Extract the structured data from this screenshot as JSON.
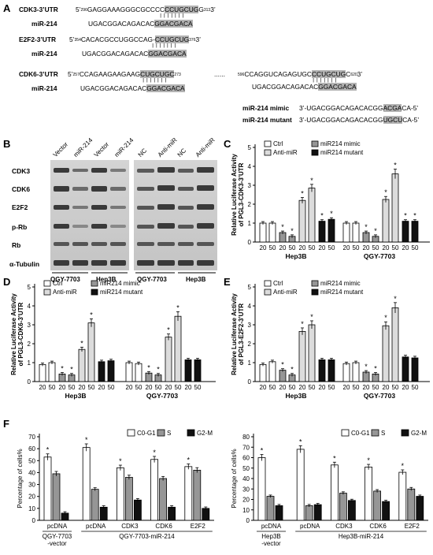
{
  "panels": {
    "A": "A",
    "B": "B",
    "C": "C",
    "D": "D",
    "E": "E",
    "F": "F"
  },
  "panel_a": {
    "cdk3": {
      "label": "CDK3-3’UTR",
      "prime5": "5’",
      "num_start": "296",
      "seq_pre": "GAGGAAAGGGCGCCCC",
      "seq_site": "CCUGCUG",
      "seq_post": "G",
      "num_end": "313",
      "prime3": "3’",
      "mir_label": "miR-214",
      "mir_pre": "UGACGGACAGACAC",
      "mir_site": "GGACGACA"
    },
    "e2f2": {
      "label": "E2F2-3’UTR",
      "prime5": "5’",
      "num_start": "354",
      "seq_pre": "CACACGCCUGGCCAG-",
      "seq_site": "CCUGCUG",
      "num_end": "376",
      "prime3": "3’",
      "mir_label": "miR-214",
      "mir_pre": "UGACGGACAGACAC",
      "mir_site": "GGACGACA"
    },
    "cdk6": {
      "label": "CDK6-3’UTR",
      "prime5": "5’",
      "num_start": "257",
      "seq_pre": "CCAGAAGAAGAAG",
      "seq_site": "CUGCUGC",
      "num_mid": "273",
      "dots": "......",
      "num_mid2": "596",
      "seq2_pre": "CCAGGUCAGAGUGC",
      "seq2_site": "CCUGCUG",
      "seq2_post": "C",
      "num_end": "620",
      "prime3": "3’",
      "mir_label": "miR-214",
      "mir_pre": "UGACGGACAGACAC",
      "mir_site": "GGACGACA",
      "mir2_pre": "UGACGGACAGACAC",
      "mir2_site": "GGACGACA"
    },
    "mimic": {
      "label": "miR-214 mimic",
      "seq_pre": "3’-UGACGGACAGACACGG",
      "seq_site": "ACGA",
      "seq_post": "CA-5’"
    },
    "mutant": {
      "label": "miR-214 mutant",
      "seq_pre": "3’-UGACGGACAGACACGG",
      "seq_site": "UGCU",
      "seq_post": "CA-5’"
    }
  },
  "panel_b": {
    "lanes_left": [
      "Vector",
      "miR-214",
      "Vector",
      "miR-214"
    ],
    "lanes_right": [
      "NC",
      "Anti-miR",
      "NC",
      "Anti-miR"
    ],
    "proteins": [
      "CDK3",
      "CDK6",
      "E2F2",
      "p-Rb",
      "Rb",
      "α-Tubulin"
    ],
    "cell_lines": [
      "QGY-7703",
      "Hep3B",
      "QGY-7703",
      "Hep3B"
    ]
  },
  "luciferase_legend": [
    "Ctrl",
    "Anti-miR",
    "miR214 mimic",
    "miR214 mutant"
  ],
  "colors": {
    "ctrl": "#ffffff",
    "anti": "#dcdcdc",
    "mimic": "#969696",
    "mutant": "#111111"
  },
  "chart_data": [
    {
      "panel": "C",
      "type": "bar",
      "ylabel": "Relative Luciferase Activity of PGL3-CDK3-3’UTR",
      "ylim": [
        0,
        5
      ],
      "yticks": [
        0,
        1,
        2,
        3,
        4,
        5
      ],
      "groups": [
        "Hep3B",
        "QGY-7703"
      ],
      "concentrations": [
        "20",
        "50"
      ],
      "series": [
        {
          "name": "Ctrl",
          "values": [
            [
              1.0,
              1.0
            ],
            [
              1.0,
              1.0
            ]
          ]
        },
        {
          "name": "miR214 mimic",
          "values": [
            [
              0.5,
              0.3
            ],
            [
              0.5,
              0.3
            ]
          ]
        },
        {
          "name": "Anti-miR",
          "values": [
            [
              2.2,
              2.85
            ],
            [
              2.25,
              3.6
            ]
          ]
        },
        {
          "name": "miR214 mutant",
          "values": [
            [
              1.1,
              1.2
            ],
            [
              1.1,
              1.1
            ]
          ]
        }
      ],
      "significant": [
        "mimic",
        "anti",
        "mutant"
      ]
    },
    {
      "panel": "D",
      "type": "bar",
      "ylabel": "Relative Luciferase Activity of PGL3-CDK6-3’UTR",
      "ylim": [
        0,
        5
      ],
      "yticks": [
        0,
        1,
        2,
        3,
        4,
        5
      ],
      "groups": [
        "Hep3B",
        "QGY-7703"
      ],
      "concentrations": [
        "20",
        "50"
      ],
      "series": [
        {
          "name": "Ctrl",
          "values": [
            [
              0.9,
              1.0
            ],
            [
              1.0,
              0.95
            ]
          ]
        },
        {
          "name": "miR214 mimic",
          "values": [
            [
              0.4,
              0.35
            ],
            [
              0.45,
              0.35
            ]
          ]
        },
        {
          "name": "Anti-miR",
          "values": [
            [
              1.7,
              3.1
            ],
            [
              2.35,
              3.45
            ]
          ]
        },
        {
          "name": "miR214 mutant",
          "values": [
            [
              1.05,
              1.1
            ],
            [
              1.15,
              1.15
            ]
          ]
        }
      ],
      "significant": [
        "mimic",
        "anti"
      ]
    },
    {
      "panel": "E",
      "type": "bar",
      "ylabel": "Relative Luciferase Activity of PGL3-E2F2-3’UTR",
      "ylim": [
        0,
        5
      ],
      "yticks": [
        0,
        1,
        2,
        3,
        4,
        5
      ],
      "groups": [
        "Hep3B",
        "QGY-7703"
      ],
      "concentrations": [
        "20",
        "50"
      ],
      "series": [
        {
          "name": "Ctrl",
          "values": [
            [
              0.9,
              1.05
            ],
            [
              0.95,
              1.0
            ]
          ]
        },
        {
          "name": "miR214 mimic",
          "values": [
            [
              0.6,
              0.35
            ],
            [
              0.5,
              0.4
            ]
          ]
        },
        {
          "name": "Anti-miR",
          "values": [
            [
              2.65,
              3.0
            ],
            [
              2.95,
              3.9
            ]
          ]
        },
        {
          "name": "miR214 mutant",
          "values": [
            [
              1.15,
              1.15
            ],
            [
              1.3,
              1.25
            ]
          ]
        }
      ],
      "significant": [
        "mimic",
        "anti"
      ]
    },
    {
      "panel": "F-left",
      "type": "bar",
      "ylabel": "Percentage of cells%",
      "ylim": [
        0,
        70
      ],
      "yticks": [
        0,
        10,
        20,
        30,
        40,
        50,
        60,
        70
      ],
      "legend": [
        "C0-G1",
        "S",
        "G2-M"
      ],
      "categories": [
        "pcDNA",
        "pcDNA",
        "CDK3",
        "CDK6",
        "E2F2"
      ],
      "series": [
        {
          "name": "C0-G1",
          "values": [
            53,
            61,
            44,
            51,
            45
          ]
        },
        {
          "name": "S",
          "values": [
            39,
            26,
            36,
            35,
            42
          ]
        },
        {
          "name": "G2-M",
          "values": [
            6,
            11,
            17,
            11,
            10
          ]
        }
      ],
      "star_categories": [
        0,
        1,
        2,
        3,
        4
      ],
      "group_labels": [
        {
          "text": "QGY-7703",
          "sub": "-vector",
          "span": [
            0,
            0
          ]
        },
        {
          "text": "QGY-7703-miR-214",
          "span": [
            1,
            4
          ]
        }
      ]
    },
    {
      "panel": "F-right",
      "type": "bar",
      "ylabel": "Percentage of cells%",
      "ylim": [
        0,
        80
      ],
      "yticks": [
        0,
        10,
        20,
        30,
        40,
        50,
        60,
        70,
        80
      ],
      "legend": [
        "C0-G1",
        "S",
        "G2-M"
      ],
      "categories": [
        "pcDNA",
        "pcDNA",
        "CDK3",
        "CDK6",
        "E2F2"
      ],
      "series": [
        {
          "name": "C0-G1",
          "values": [
            60,
            68,
            53,
            51,
            46
          ]
        },
        {
          "name": "S",
          "values": [
            23,
            14,
            26,
            28,
            30
          ]
        },
        {
          "name": "G2-M",
          "values": [
            14,
            15,
            19,
            18,
            23
          ]
        }
      ],
      "star_categories": [
        0,
        1,
        2,
        3,
        4
      ],
      "group_labels": [
        {
          "text": "Hep3B",
          "sub": "-vector",
          "span": [
            0,
            0
          ]
        },
        {
          "text": "Hep3B-miR-214",
          "span": [
            1,
            4
          ]
        }
      ]
    }
  ]
}
